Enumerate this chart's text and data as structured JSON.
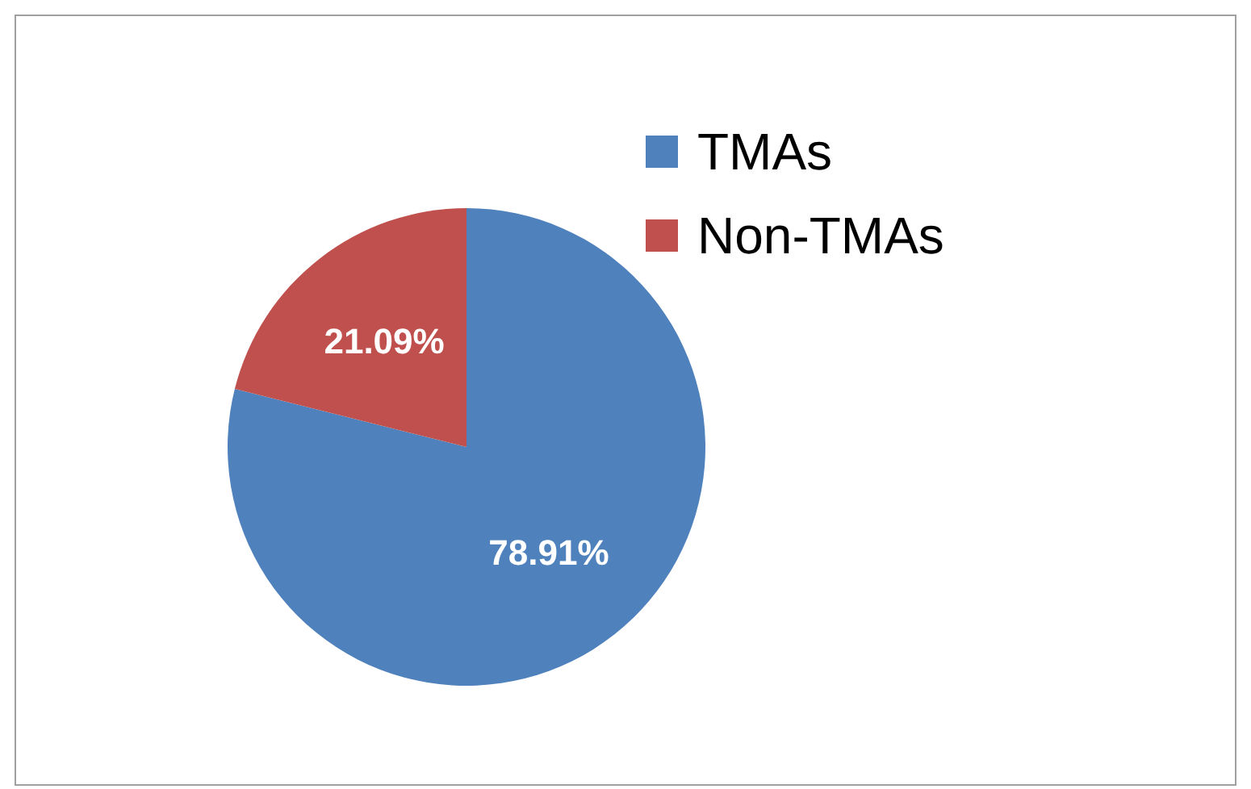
{
  "chart_data": {
    "type": "pie",
    "categories": [
      "TMAs",
      "Non-TMAs"
    ],
    "values": [
      78.91,
      21.09
    ],
    "colors": [
      "#4f81bd",
      "#c0504d"
    ],
    "value_labels": [
      "78.91%",
      "21.09%"
    ],
    "legend": "top right"
  }
}
